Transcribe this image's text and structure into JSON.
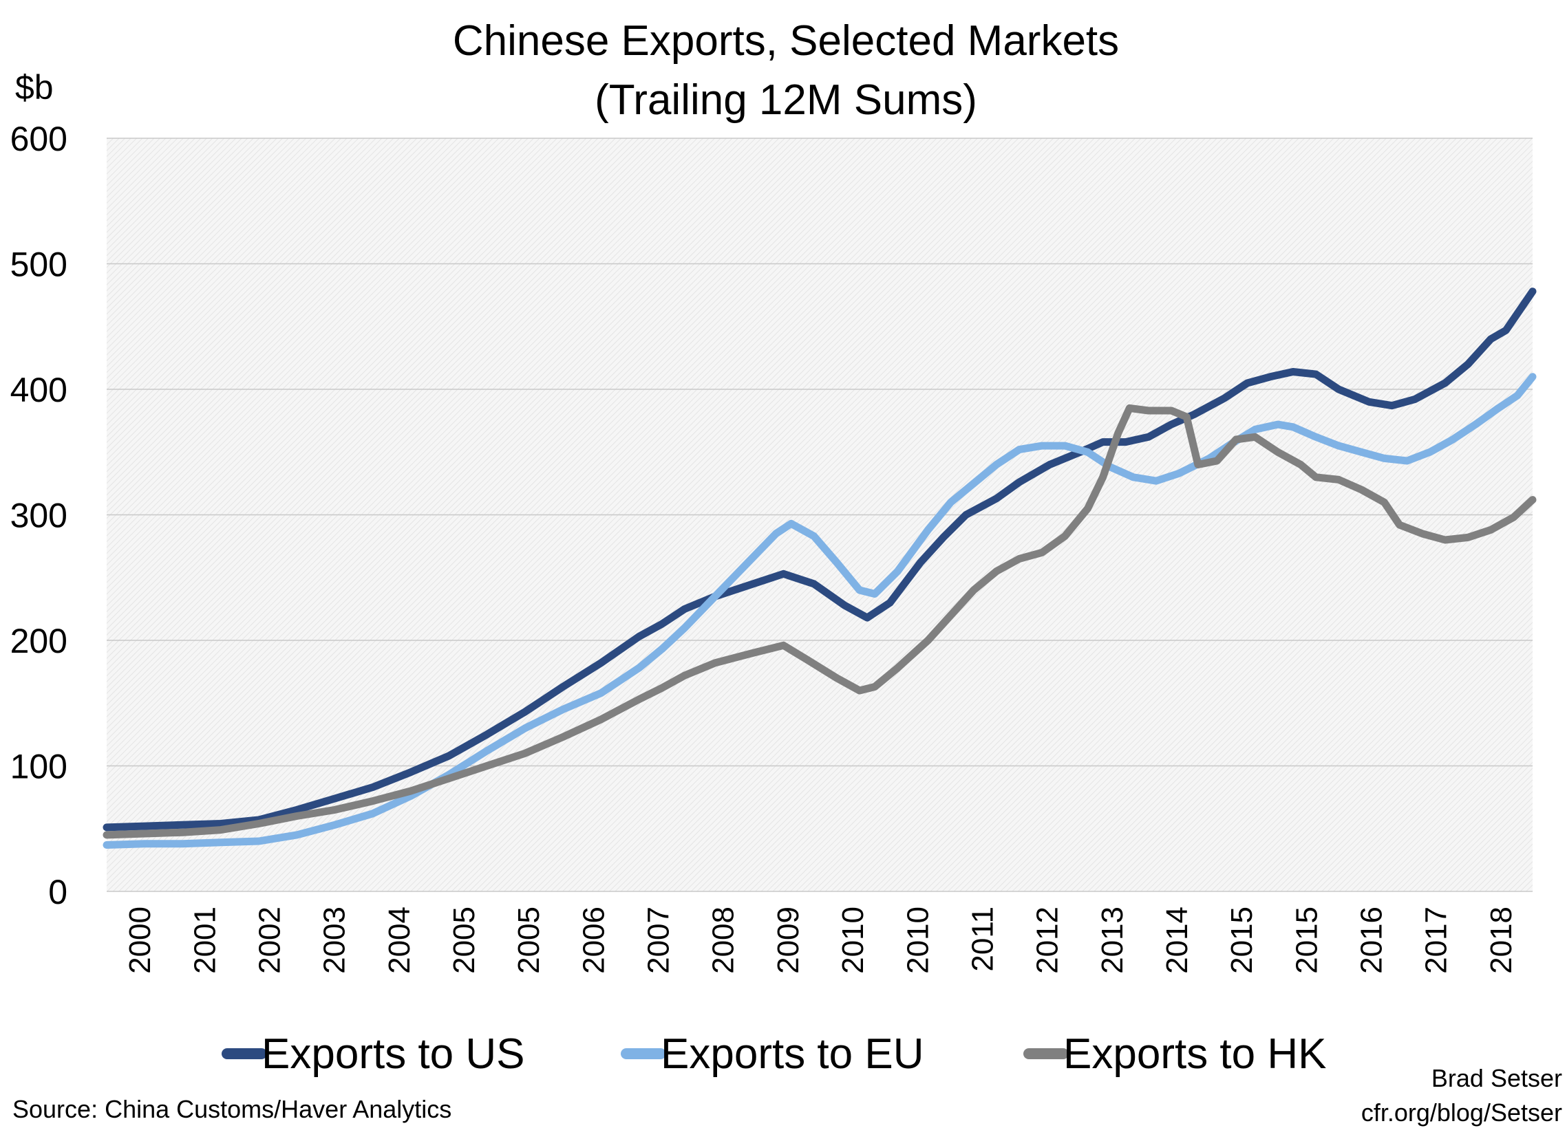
{
  "chart_data": {
    "type": "line",
    "title": "Chinese Exports, Selected Markets",
    "subtitle": "(Trailing 12M Sums)",
    "ylabel": "$b",
    "xlabel": "",
    "ylim": [
      0,
      600
    ],
    "yticks": [
      "0",
      "100",
      "200",
      "300",
      "400",
      "500",
      "600"
    ],
    "xlim": [
      2000.0,
      2018.75
    ],
    "xtick_labels": [
      "2000",
      "2001",
      "2002",
      "2003",
      "2004",
      "2005",
      "2005",
      "2006",
      "2007",
      "2008",
      "2009",
      "2010",
      "2010",
      "2011",
      "2012",
      "2013",
      "2014",
      "2015",
      "2015",
      "2016",
      "2017",
      "2018"
    ],
    "grid": true,
    "legend_position": "bottom",
    "series": [
      {
        "name": "Exports to US",
        "color": "#2c4a80",
        "points": [
          [
            2000.0,
            51
          ],
          [
            2000.5,
            52
          ],
          [
            2001.0,
            53
          ],
          [
            2001.5,
            54
          ],
          [
            2002.0,
            57
          ],
          [
            2002.5,
            65
          ],
          [
            2003.0,
            74
          ],
          [
            2003.5,
            83
          ],
          [
            2004.0,
            95
          ],
          [
            2004.5,
            108
          ],
          [
            2005.0,
            125
          ],
          [
            2005.5,
            143
          ],
          [
            2006.0,
            163
          ],
          [
            2006.5,
            182
          ],
          [
            2007.0,
            203
          ],
          [
            2007.3,
            213
          ],
          [
            2007.6,
            225
          ],
          [
            2008.0,
            235
          ],
          [
            2008.5,
            245
          ],
          [
            2008.9,
            253
          ],
          [
            2009.3,
            245
          ],
          [
            2009.7,
            228
          ],
          [
            2010.0,
            218
          ],
          [
            2010.3,
            230
          ],
          [
            2010.7,
            262
          ],
          [
            2011.0,
            282
          ],
          [
            2011.3,
            300
          ],
          [
            2011.7,
            313
          ],
          [
            2012.0,
            326
          ],
          [
            2012.4,
            340
          ],
          [
            2012.8,
            350
          ],
          [
            2013.1,
            358
          ],
          [
            2013.4,
            358
          ],
          [
            2013.7,
            362
          ],
          [
            2014.0,
            372
          ],
          [
            2014.3,
            380
          ],
          [
            2014.7,
            393
          ],
          [
            2015.0,
            405
          ],
          [
            2015.3,
            410
          ],
          [
            2015.6,
            414
          ],
          [
            2015.9,
            412
          ],
          [
            2016.2,
            400
          ],
          [
            2016.6,
            390
          ],
          [
            2016.9,
            387
          ],
          [
            2017.2,
            392
          ],
          [
            2017.6,
            405
          ],
          [
            2017.9,
            420
          ],
          [
            2018.2,
            440
          ],
          [
            2018.4,
            447
          ],
          [
            2018.75,
            478
          ]
        ]
      },
      {
        "name": "Exports to EU",
        "color": "#7fb2e5",
        "points": [
          [
            2000.0,
            37
          ],
          [
            2000.5,
            38
          ],
          [
            2001.0,
            38
          ],
          [
            2001.5,
            39
          ],
          [
            2002.0,
            40
          ],
          [
            2002.5,
            45
          ],
          [
            2003.0,
            53
          ],
          [
            2003.5,
            62
          ],
          [
            2004.0,
            76
          ],
          [
            2004.5,
            93
          ],
          [
            2005.0,
            112
          ],
          [
            2005.5,
            130
          ],
          [
            2006.0,
            145
          ],
          [
            2006.5,
            158
          ],
          [
            2007.0,
            178
          ],
          [
            2007.3,
            193
          ],
          [
            2007.6,
            210
          ],
          [
            2008.0,
            235
          ],
          [
            2008.4,
            260
          ],
          [
            2008.8,
            285
          ],
          [
            2009.0,
            293
          ],
          [
            2009.3,
            283
          ],
          [
            2009.6,
            262
          ],
          [
            2009.9,
            240
          ],
          [
            2010.1,
            237
          ],
          [
            2010.4,
            255
          ],
          [
            2010.8,
            288
          ],
          [
            2011.1,
            310
          ],
          [
            2011.4,
            325
          ],
          [
            2011.7,
            340
          ],
          [
            2012.0,
            352
          ],
          [
            2012.3,
            355
          ],
          [
            2012.6,
            355
          ],
          [
            2012.9,
            350
          ],
          [
            2013.2,
            338
          ],
          [
            2013.5,
            330
          ],
          [
            2013.8,
            327
          ],
          [
            2014.1,
            333
          ],
          [
            2014.5,
            345
          ],
          [
            2014.8,
            357
          ],
          [
            2015.1,
            368
          ],
          [
            2015.4,
            372
          ],
          [
            2015.6,
            370
          ],
          [
            2015.9,
            362
          ],
          [
            2016.2,
            355
          ],
          [
            2016.5,
            350
          ],
          [
            2016.8,
            345
          ],
          [
            2017.1,
            343
          ],
          [
            2017.4,
            350
          ],
          [
            2017.7,
            360
          ],
          [
            2018.0,
            372
          ],
          [
            2018.3,
            385
          ],
          [
            2018.55,
            395
          ],
          [
            2018.75,
            410
          ]
        ]
      },
      {
        "name": "Exports to HK",
        "color": "#808080",
        "points": [
          [
            2000.0,
            45
          ],
          [
            2000.5,
            46
          ],
          [
            2001.0,
            47
          ],
          [
            2001.5,
            49
          ],
          [
            2002.0,
            54
          ],
          [
            2002.5,
            60
          ],
          [
            2003.0,
            65
          ],
          [
            2003.5,
            72
          ],
          [
            2004.0,
            80
          ],
          [
            2004.5,
            90
          ],
          [
            2005.0,
            100
          ],
          [
            2005.5,
            110
          ],
          [
            2006.0,
            123
          ],
          [
            2006.5,
            137
          ],
          [
            2007.0,
            153
          ],
          [
            2007.3,
            162
          ],
          [
            2007.6,
            172
          ],
          [
            2008.0,
            182
          ],
          [
            2008.5,
            190
          ],
          [
            2008.9,
            196
          ],
          [
            2009.2,
            185
          ],
          [
            2009.6,
            170
          ],
          [
            2009.9,
            160
          ],
          [
            2010.1,
            163
          ],
          [
            2010.4,
            178
          ],
          [
            2010.8,
            200
          ],
          [
            2011.1,
            220
          ],
          [
            2011.4,
            240
          ],
          [
            2011.7,
            255
          ],
          [
            2012.0,
            265
          ],
          [
            2012.3,
            270
          ],
          [
            2012.6,
            283
          ],
          [
            2012.9,
            305
          ],
          [
            2013.1,
            330
          ],
          [
            2013.3,
            365
          ],
          [
            2013.45,
            385
          ],
          [
            2013.7,
            383
          ],
          [
            2014.0,
            383
          ],
          [
            2014.2,
            378
          ],
          [
            2014.35,
            340
          ],
          [
            2014.6,
            343
          ],
          [
            2014.85,
            360
          ],
          [
            2015.1,
            362
          ],
          [
            2015.4,
            350
          ],
          [
            2015.7,
            340
          ],
          [
            2015.9,
            330
          ],
          [
            2016.2,
            328
          ],
          [
            2016.5,
            320
          ],
          [
            2016.8,
            310
          ],
          [
            2017.0,
            292
          ],
          [
            2017.3,
            285
          ],
          [
            2017.6,
            280
          ],
          [
            2017.9,
            282
          ],
          [
            2018.2,
            288
          ],
          [
            2018.5,
            298
          ],
          [
            2018.75,
            312
          ]
        ]
      }
    ]
  },
  "notes": {
    "source": "Source: China Customs/Haver Analytics",
    "credit_line1": "Brad Setser",
    "credit_line2": "cfr.org/blog/Setser"
  }
}
